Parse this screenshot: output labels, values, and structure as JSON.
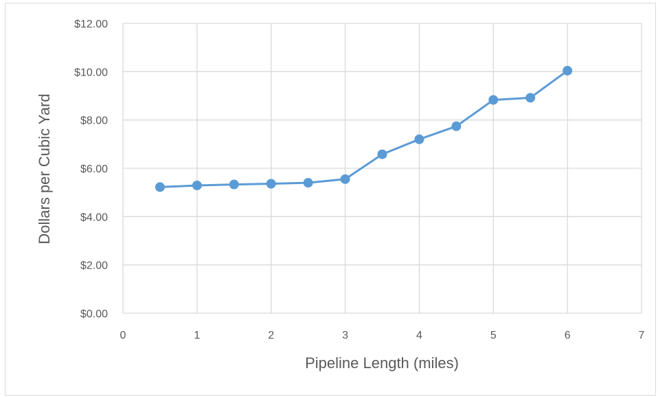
{
  "chart_data": {
    "type": "scatter",
    "title": "",
    "xlabel": "Pipeline Length (miles)",
    "ylabel": "Dollars per Cubic Yard",
    "xlim": [
      0,
      7
    ],
    "ylim": [
      0,
      12
    ],
    "x_ticks": [
      0,
      1,
      2,
      3,
      4,
      5,
      6,
      7
    ],
    "x_tick_labels": [
      "0",
      "1",
      "2",
      "3",
      "4",
      "5",
      "6",
      "7"
    ],
    "y_ticks": [
      0,
      2,
      4,
      6,
      8,
      10,
      12
    ],
    "y_tick_labels": [
      "$0.00",
      "$2.00",
      "$4.00",
      "$6.00",
      "$8.00",
      "$10.00",
      "$12.00"
    ],
    "grid": true,
    "legend": "none",
    "series_color": "#5b9bd5",
    "series": [
      {
        "x": [
          0.5,
          1,
          1.5,
          2,
          2.5,
          3,
          3.5,
          4,
          4.5,
          5,
          5.5,
          6
        ],
        "y": [
          5.22,
          5.29,
          5.33,
          5.36,
          5.4,
          5.55,
          6.58,
          7.2,
          7.74,
          8.83,
          8.92,
          10.04
        ]
      }
    ]
  }
}
